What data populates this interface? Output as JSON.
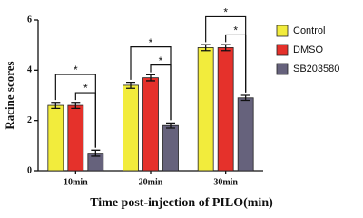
{
  "chart_data": {
    "type": "bar",
    "x_label": "Time post-injection of PILO(min)",
    "y_label": "Racine scores",
    "categories": [
      "10min",
      "20min",
      "30min"
    ],
    "series": [
      {
        "name": "Control",
        "color": "#f2ec3c",
        "values": [
          2.6,
          3.4,
          4.9
        ],
        "errors": [
          0.12,
          0.12,
          0.12
        ]
      },
      {
        "name": "DMSO",
        "color": "#e5312b",
        "values": [
          2.6,
          3.7,
          4.9
        ],
        "errors": [
          0.12,
          0.12,
          0.12
        ]
      },
      {
        "name": "SB203580",
        "color": "#66627c",
        "values": [
          0.7,
          1.8,
          2.9
        ],
        "errors": [
          0.12,
          0.1,
          0.1
        ]
      }
    ],
    "significance": [
      {
        "category": 0,
        "series": [
          0,
          2
        ],
        "label": "*"
      },
      {
        "category": 0,
        "series": [
          1,
          2
        ],
        "label": "*"
      },
      {
        "category": 1,
        "series": [
          0,
          2
        ],
        "label": "*"
      },
      {
        "category": 1,
        "series": [
          1,
          2
        ],
        "label": "*"
      },
      {
        "category": 2,
        "series": [
          0,
          2
        ],
        "label": "*"
      },
      {
        "category": 2,
        "series": [
          1,
          2
        ],
        "label": "*"
      }
    ],
    "ylim": [
      0,
      6
    ],
    "yticks": [
      0,
      2,
      4,
      6
    ],
    "legend": "right"
  }
}
